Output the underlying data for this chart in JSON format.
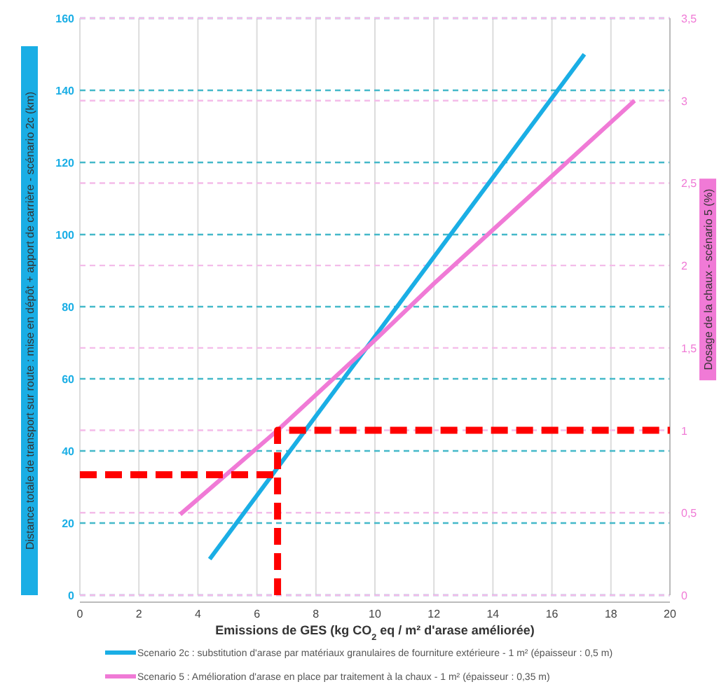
{
  "chart_data": {
    "type": "line",
    "xlabel": "Emissions de GES (kg CO$_{2}$ eq / m² d'arase améliorée)",
    "ylabel": "Distance totale de transport sur route : mise en dépôt + apport de carrière - scénario 2c (km)",
    "y2label": "Dosage de la chaux - scénario 5 (%)",
    "xlim": [
      0,
      20
    ],
    "xticks": [
      0,
      2,
      4,
      6,
      8,
      10,
      12,
      14,
      16,
      18,
      20
    ],
    "ylim": [
      0,
      160
    ],
    "yticks": [
      0,
      20,
      40,
      60,
      80,
      100,
      120,
      140,
      160
    ],
    "y2lim": [
      0,
      3.5
    ],
    "y2ticks": [
      0,
      {
        "value": 0.5,
        "label": "0,5"
      },
      1,
      {
        "value": 1.5,
        "label": "1,5"
      },
      2,
      {
        "value": 2.5,
        "label": "2,5"
      },
      3,
      {
        "value": 3.5,
        "label": "3,5"
      }
    ],
    "grid": true,
    "legend": "bottom",
    "line_style": "solid",
    "marker": "none",
    "series": [
      {
        "name": "Scenario 2c : substitution d'arase par matériaux granulaires de fourniture extérieure - 1 m² (épaisseur : 0,5 m)",
        "color": "#1aaee5",
        "x": [
          4.4,
          17.1
        ],
        "values": [
          10,
          150
        ]
      },
      {
        "name": "Scenario 5 : Amélioration d'arase en place par traitement à la chaux - 1 m² (épaisseur : 0,35 m)",
        "color": "#f07ad6",
        "axis": "y2",
        "x": [
          3.4,
          6.7,
          9.9,
          12,
          18.8
        ],
        "values": [
          0.49,
          1.0,
          1.53,
          1.89,
          3.0
        ]
      },
      {
        "color": "#ff0000",
        "line_style": "dashed",
        "x": [
          0,
          6.7
        ],
        "values": [
          33.4,
          33.4
        ]
      },
      {
        "color": "#ff0000",
        "line_style": "dashed",
        "axis": "y2",
        "x": [
          6.7,
          6.7,
          20
        ],
        "values": [
          0,
          1,
          1
        ]
      }
    ]
  }
}
